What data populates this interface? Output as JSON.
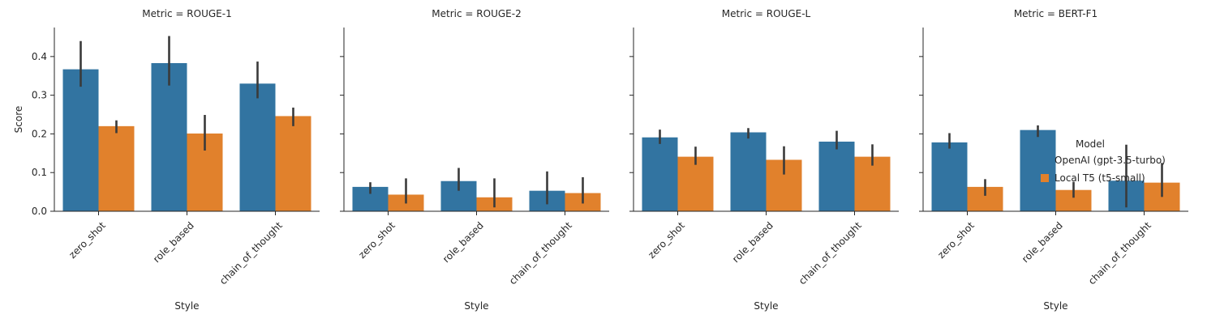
{
  "chart_data": {
    "type": "bar",
    "facet_prefix": "Metric = ",
    "facets": [
      "ROUGE-1",
      "ROUGE-2",
      "ROUGE-L",
      "BERT-F1"
    ],
    "categories": [
      "zero_shot",
      "role_based",
      "chain_of_thought"
    ],
    "xlabel": "Style",
    "ylabel": "Score",
    "ylim": [
      0,
      0.475
    ],
    "yticks": [
      "0.0",
      "0.1",
      "0.2",
      "0.3",
      "0.4"
    ],
    "legend": {
      "title": "Model",
      "placement": "right",
      "entries": [
        "OpenAI (gpt-3.5-turbo)",
        "Local T5 (t5-small)"
      ]
    },
    "colors": [
      "#3274a1",
      "#e1812c"
    ],
    "error_color": "#3a3a3a",
    "series": [
      {
        "name": "OpenAI (gpt-3.5-turbo)",
        "values": [
          [
            0.367,
            0.383,
            0.33
          ],
          [
            0.063,
            0.078,
            0.053
          ],
          [
            0.191,
            0.204,
            0.18
          ],
          [
            0.178,
            0.21,
            0.079
          ]
        ],
        "ci": [
          [
            [
              0.322,
              0.44
            ],
            [
              0.325,
              0.453
            ],
            [
              0.292,
              0.387
            ]
          ],
          [
            [
              0.045,
              0.075
            ],
            [
              0.053,
              0.112
            ],
            [
              0.018,
              0.103
            ]
          ],
          [
            [
              0.174,
              0.211
            ],
            [
              0.188,
              0.215
            ],
            [
              0.16,
              0.208
            ]
          ],
          [
            [
              0.162,
              0.202
            ],
            [
              0.192,
              0.222
            ],
            [
              0.01,
              0.172
            ]
          ]
        ]
      },
      {
        "name": "Local T5 (t5-small)",
        "values": [
          [
            0.22,
            0.201,
            0.246
          ],
          [
            0.043,
            0.036,
            0.047
          ],
          [
            0.141,
            0.133,
            0.141
          ],
          [
            0.063,
            0.055,
            0.074
          ]
        ],
        "ci": [
          [
            [
              0.202,
              0.235
            ],
            [
              0.157,
              0.249
            ],
            [
              0.22,
              0.268
            ]
          ],
          [
            [
              0.02,
              0.085
            ],
            [
              0.01,
              0.085
            ],
            [
              0.02,
              0.088
            ]
          ],
          [
            [
              0.12,
              0.167
            ],
            [
              0.095,
              0.168
            ],
            [
              0.118,
              0.173
            ]
          ],
          [
            [
              0.04,
              0.083
            ],
            [
              0.035,
              0.076
            ],
            [
              0.037,
              0.125
            ]
          ]
        ]
      }
    ]
  }
}
